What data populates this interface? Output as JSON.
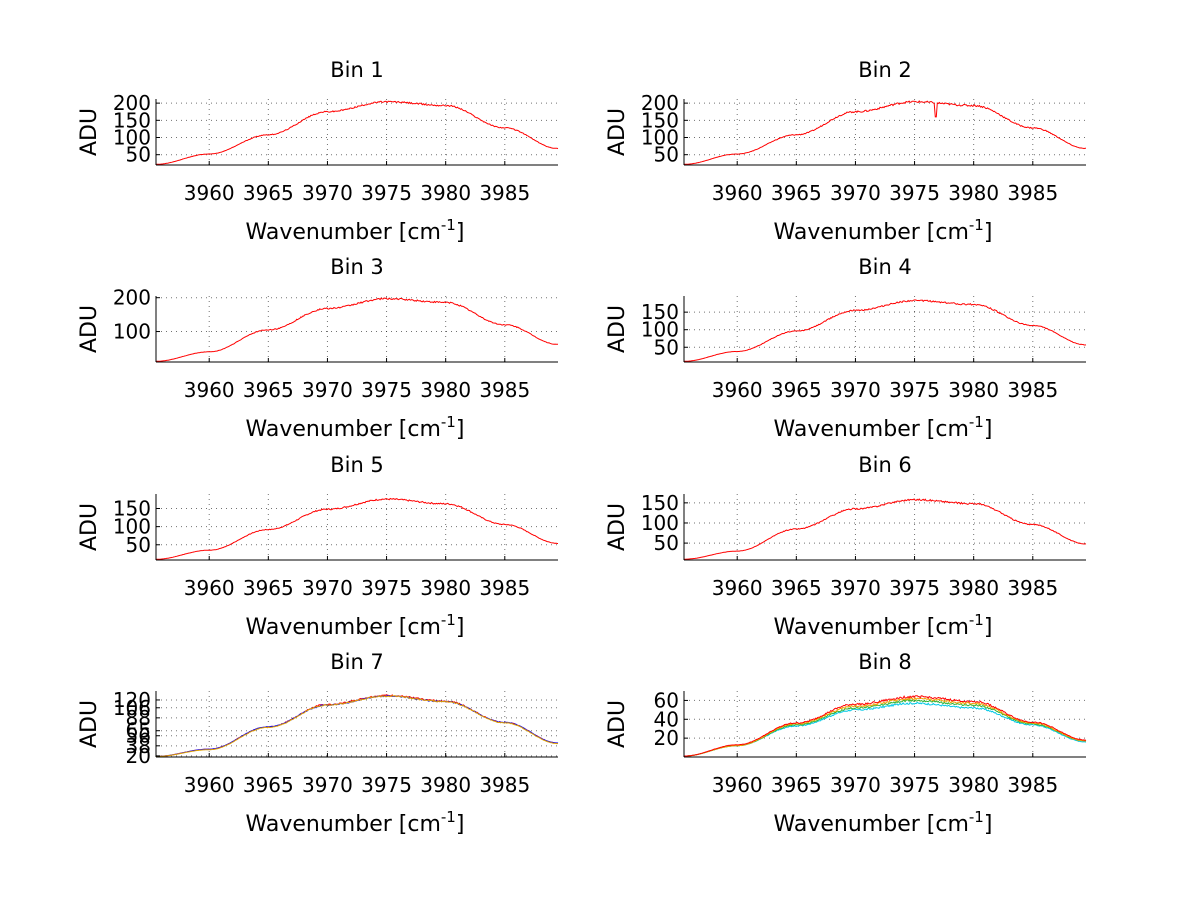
{
  "figure": {
    "background": "#ffffff"
  },
  "chart_data": [
    {
      "type": "line",
      "title": "Bin 1",
      "xlabel": "Wavenumber [cm",
      "xlabel_sup": "-1",
      "xlabel_end": "]",
      "ylabel": "ADU",
      "xlim": [
        3955.5,
        3989.5
      ],
      "ylim": [
        20,
        212
      ],
      "xticks": [
        "3960",
        "3965",
        "3970",
        "3975",
        "3980",
        "3985"
      ],
      "yticks": [
        "50",
        "100",
        "150",
        "200"
      ],
      "series": [
        {
          "name": "series-1",
          "color": "#ff0000",
          "peak_center": 3975.7,
          "peak_value": 204,
          "values_x": [
            3955.5,
            3960,
            3965,
            3970,
            3975,
            3980,
            3985,
            3989.5
          ],
          "values_y": [
            22,
            52,
            108,
            175,
            204,
            193,
            128,
            68
          ],
          "noise": 2.2,
          "dip": null
        }
      ]
    },
    {
      "type": "line",
      "title": "Bin 2",
      "xlabel": "Wavenumber [cm",
      "xlabel_sup": "-1",
      "xlabel_end": "]",
      "ylabel": "ADU",
      "xlim": [
        3955.5,
        3989.5
      ],
      "ylim": [
        20,
        212
      ],
      "xticks": [
        "3960",
        "3965",
        "3970",
        "3975",
        "3980",
        "3985"
      ],
      "yticks": [
        "50",
        "100",
        "150",
        "200"
      ],
      "series": [
        {
          "name": "series-1",
          "color": "#ff0000",
          "peak_center": 3975.7,
          "peak_value": 204,
          "values_x": [
            3955.5,
            3960,
            3965,
            3970,
            3975,
            3980,
            3985,
            3989.5
          ],
          "values_y": [
            22,
            52,
            108,
            175,
            204,
            193,
            128,
            68
          ],
          "noise": 2.8,
          "dip": {
            "x": 3976.8,
            "value": 160
          }
        }
      ]
    },
    {
      "type": "line",
      "title": "Bin 3",
      "xlabel": "Wavenumber [cm",
      "xlabel_sup": "-1",
      "xlabel_end": "]",
      "ylabel": "ADU",
      "xlim": [
        3955.5,
        3989.5
      ],
      "ylim": [
        10,
        205
      ],
      "xticks": [
        "3960",
        "3965",
        "3970",
        "3975",
        "3980",
        "3985"
      ],
      "yticks": [
        "100",
        "200"
      ],
      "series": [
        {
          "name": "series-1",
          "color": "#ff0000",
          "peak_center": 3975.7,
          "peak_value": 197,
          "values_x": [
            3955.5,
            3960,
            3965,
            3970,
            3975,
            3980,
            3985,
            3989.5
          ],
          "values_y": [
            12,
            40,
            105,
            168,
            197,
            186,
            120,
            62
          ],
          "noise": 2.4,
          "dip": null
        }
      ]
    },
    {
      "type": "line",
      "title": "Bin 4",
      "xlabel": "Wavenumber [cm",
      "xlabel_sup": "-1",
      "xlabel_end": "]",
      "ylabel": "ADU",
      "xlim": [
        3955.5,
        3989.5
      ],
      "ylim": [
        8,
        196
      ],
      "xticks": [
        "3960",
        "3965",
        "3970",
        "3975",
        "3980",
        "3985"
      ],
      "yticks": [
        "50",
        "100",
        "150"
      ],
      "series": [
        {
          "name": "series-1",
          "color": "#ff0000",
          "peak_center": 3975.7,
          "peak_value": 183,
          "values_x": [
            3955.5,
            3960,
            3965,
            3970,
            3975,
            3980,
            3985,
            3989.5
          ],
          "values_y": [
            10,
            38,
            96,
            155,
            183,
            172,
            112,
            57
          ],
          "noise": 2.2,
          "dip": null
        }
      ]
    },
    {
      "type": "line",
      "title": "Bin 5",
      "xlabel": "Wavenumber [cm",
      "xlabel_sup": "-1",
      "xlabel_end": "]",
      "ylabel": "ADU",
      "xlim": [
        3955.5,
        3989.5
      ],
      "ylim": [
        8,
        190
      ],
      "xticks": [
        "3960",
        "3965",
        "3970",
        "3975",
        "3980",
        "3985"
      ],
      "yticks": [
        "50",
        "100",
        "150"
      ],
      "series": [
        {
          "name": "series-1",
          "color": "#ff0000",
          "peak_center": 3975.5,
          "peak_value": 176,
          "values_x": [
            3955.5,
            3960,
            3965,
            3970,
            3975,
            3980,
            3985,
            3989.5
          ],
          "values_y": [
            10,
            35,
            92,
            148,
            176,
            163,
            106,
            54
          ],
          "noise": 2.1,
          "dip": null
        }
      ]
    },
    {
      "type": "line",
      "title": "Bin 6",
      "xlabel": "Wavenumber [cm",
      "xlabel_sup": "-1",
      "xlabel_end": "]",
      "ylabel": "ADU",
      "xlim": [
        3955.5,
        3989.5
      ],
      "ylim": [
        8,
        172
      ],
      "xticks": [
        "3960",
        "3965",
        "3970",
        "3975",
        "3980",
        "3985"
      ],
      "yticks": [
        "50",
        "100",
        "150"
      ],
      "series": [
        {
          "name": "series-1",
          "color": "#ff0000",
          "peak_center": 3975.7,
          "peak_value": 158,
          "values_x": [
            3955.5,
            3960,
            3965,
            3970,
            3975,
            3980,
            3985,
            3989.5
          ],
          "values_y": [
            10,
            30,
            85,
            135,
            158,
            148,
            96,
            48
          ],
          "noise": 2.0,
          "dip": null
        }
      ]
    },
    {
      "type": "line",
      "title": "Bin 7",
      "xlabel": "Wavenumber [cm",
      "xlabel_sup": "-1",
      "xlabel_end": "]",
      "ylabel": "ADU",
      "xlim": [
        3955.5,
        3989.5
      ],
      "ylim": [
        18,
        136
      ],
      "xticks": [
        "3960",
        "3965",
        "3970",
        "3975",
        "3980",
        "3985"
      ],
      "yticks": [
        "20",
        "38",
        "56",
        "65",
        "88",
        "106",
        "120"
      ],
      "series": [
        {
          "name": "series-1",
          "color": "#ff0000",
          "peak_center": 3975.5,
          "peak_value": 128,
          "values_x": [
            3955.5,
            3960,
            3965,
            3970,
            3975,
            3980,
            3985,
            3989.5
          ],
          "values_y": [
            19,
            32,
            72,
            112,
            128,
            118,
            80,
            43
          ],
          "noise": 1.4,
          "dip": null
        },
        {
          "name": "series-2",
          "color": "#0000ff",
          "peak_center": 3975.5,
          "peak_value": 127,
          "values_x": [
            3955.5,
            3960,
            3965,
            3970,
            3975,
            3980,
            3985,
            3989.5
          ],
          "values_y": [
            19,
            32,
            72,
            111,
            127,
            117,
            80,
            43
          ],
          "noise": 1.2,
          "dip": null
        },
        {
          "name": "series-3",
          "color": "#e0a000",
          "peak_center": 3975.5,
          "peak_value": 127,
          "values_x": [
            3955.5,
            3960,
            3965,
            3970,
            3975,
            3980,
            3985,
            3989.5
          ],
          "values_y": [
            19,
            31,
            71,
            111,
            127,
            117,
            79,
            42
          ],
          "noise": 1.2,
          "dip": null
        }
      ]
    },
    {
      "type": "line",
      "title": "Bin 8",
      "xlabel": "Wavenumber [cm",
      "xlabel_sup": "-1",
      "xlabel_end": "]",
      "ylabel": "ADU",
      "xlim": [
        3955.5,
        3989.5
      ],
      "ylim": [
        0,
        70
      ],
      "xticks": [
        "3960",
        "3965",
        "3970",
        "3975",
        "3980",
        "3985"
      ],
      "yticks": [
        "20",
        "40",
        "60"
      ],
      "series": [
        {
          "name": "series-cyan",
          "color": "#00c8e6",
          "peak_center": 3975.3,
          "peak_value": 57,
          "values_x": [
            3955.5,
            3960,
            3965,
            3970,
            3975,
            3980,
            3985,
            3989.5
          ],
          "values_y": [
            1,
            12,
            33,
            50,
            57,
            52,
            34,
            16
          ],
          "noise": 1.0,
          "dip": null
        },
        {
          "name": "series-green",
          "color": "#32b432",
          "peak_center": 3975.3,
          "peak_value": 60,
          "values_x": [
            3955.5,
            3960,
            3965,
            3970,
            3975,
            3980,
            3985,
            3989.5
          ],
          "values_y": [
            1,
            12,
            34,
            52,
            60,
            55,
            35,
            17
          ],
          "noise": 1.0,
          "dip": null
        },
        {
          "name": "series-orange",
          "color": "#f0a000",
          "peak_center": 3975.3,
          "peak_value": 62,
          "values_x": [
            3955.5,
            3960,
            3965,
            3970,
            3975,
            3980,
            3985,
            3989.5
          ],
          "values_y": [
            1,
            12,
            35,
            54,
            62,
            57,
            36,
            17
          ],
          "noise": 1.1,
          "dip": null
        },
        {
          "name": "series-red",
          "color": "#ff0000",
          "peak_center": 3975.3,
          "peak_value": 64,
          "values_x": [
            3955.5,
            3960,
            3965,
            3970,
            3975,
            3980,
            3985,
            3989.5
          ],
          "values_y": [
            1,
            13,
            36,
            56,
            64,
            59,
            37,
            18
          ],
          "noise": 1.1,
          "dip": null
        }
      ]
    }
  ]
}
